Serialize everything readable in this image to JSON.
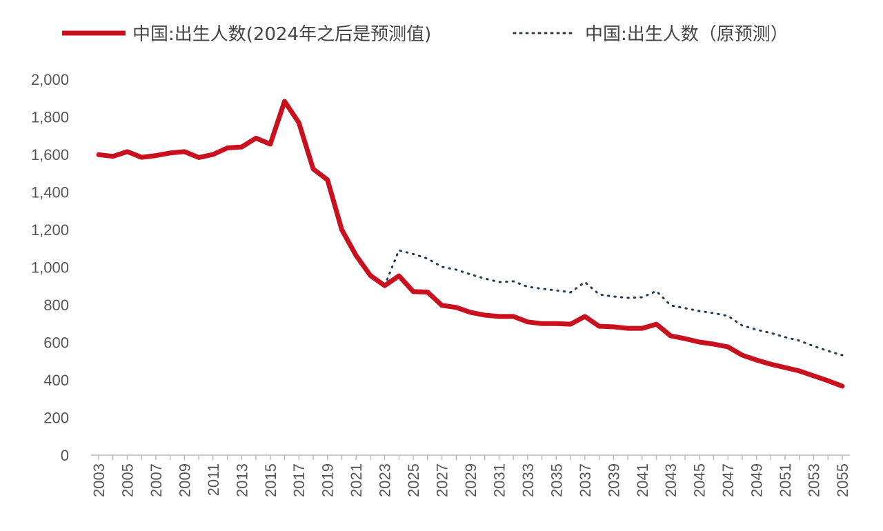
{
  "chart_data": {
    "type": "line",
    "title": "",
    "xlabel": "",
    "ylabel": "",
    "ylim": [
      0,
      2000
    ],
    "yticks": [
      "0",
      "200",
      "400",
      "600",
      "800",
      "1,000",
      "1,200",
      "1,400",
      "1,600",
      "1,800",
      "2,000"
    ],
    "xticks": [
      "2003",
      "2005",
      "2007",
      "2009",
      "2011",
      "2013",
      "2015",
      "2017",
      "2019",
      "2021",
      "2023",
      "2025",
      "2027",
      "2029",
      "2031",
      "2033",
      "2035",
      "2037",
      "2039",
      "2041",
      "2043",
      "2045",
      "2047",
      "2049",
      "2051",
      "2053",
      "2055"
    ],
    "grid": false,
    "legend": "top",
    "x": [
      2003,
      2004,
      2005,
      2006,
      2007,
      2008,
      2009,
      2010,
      2011,
      2012,
      2013,
      2014,
      2015,
      2016,
      2017,
      2018,
      2019,
      2020,
      2021,
      2022,
      2023,
      2024,
      2025,
      2026,
      2027,
      2028,
      2029,
      2030,
      2031,
      2032,
      2033,
      2034,
      2035,
      2036,
      2037,
      2038,
      2039,
      2040,
      2041,
      2042,
      2043,
      2044,
      2045,
      2046,
      2047,
      2048,
      2049,
      2050,
      2051,
      2052,
      2053,
      2054,
      2055
    ],
    "series": [
      {
        "name": "中国:出生人数(2024年之后是预测值)",
        "color": "#c8101e",
        "style": "solid",
        "values": [
          1599,
          1590,
          1615,
          1585,
          1594,
          1608,
          1615,
          1584,
          1600,
          1635,
          1640,
          1687,
          1655,
          1883,
          1769,
          1523,
          1465,
          1200,
          1062,
          956,
          902,
          954,
          870,
          868,
          797,
          786,
          760,
          745,
          738,
          738,
          709,
          700,
          700,
          697,
          738,
          686,
          683,
          675,
          675,
          697,
          635,
          620,
          602,
          591,
          576,
          532,
          506,
          484,
          466,
          448,
          422,
          396,
          367
        ]
      },
      {
        "name": "中国:出生人数（原预测）",
        "color": "#1f3b57",
        "style": "dotted",
        "values": [
          null,
          null,
          null,
          null,
          null,
          null,
          null,
          null,
          null,
          null,
          null,
          null,
          null,
          null,
          null,
          null,
          null,
          null,
          null,
          null,
          902,
          1090,
          1070,
          1046,
          1002,
          987,
          962,
          940,
          921,
          925,
          896,
          885,
          877,
          866,
          921,
          855,
          844,
          837,
          840,
          873,
          797,
          782,
          767,
          756,
          741,
          690,
          668,
          650,
          628,
          609,
          580,
          554,
          532
        ]
      }
    ]
  }
}
